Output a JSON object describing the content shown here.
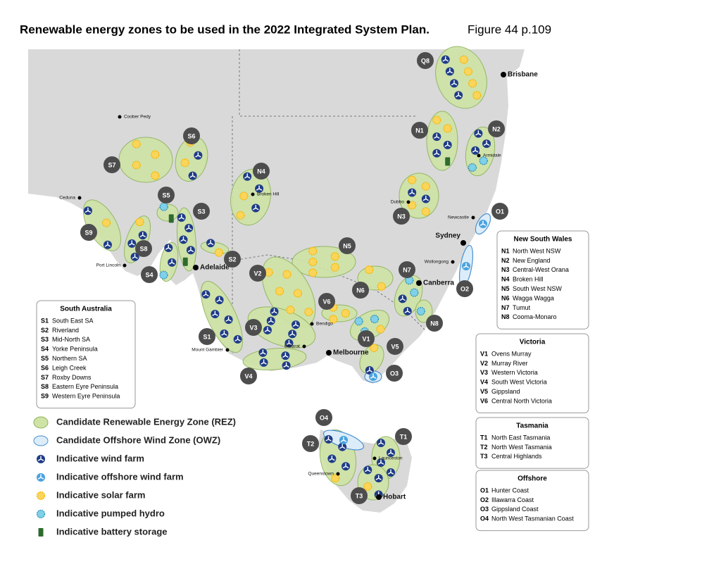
{
  "header": {
    "title": "Renewable energy zones to be used in the 2022 Integrated System Plan.",
    "figure": "Figure 44 p.109"
  },
  "map": {
    "cities": [
      "Coober Pedy",
      "Ceduna",
      "Port Lincoln",
      "Adelaide",
      "Mount Gambier",
      "Broken Hill",
      "Bendigo",
      "Ballarat",
      "Melbourne",
      "Canberra",
      "Wollongong",
      "Sydney",
      "Newcastle",
      "Dubbo",
      "Armidale",
      "Brisbane",
      "Launceston",
      "Queenstown",
      "Hobart"
    ],
    "badges": [
      "Q8",
      "N1",
      "N2",
      "N3",
      "N4",
      "N5",
      "N6",
      "N7",
      "N8",
      "O1",
      "O2",
      "O3",
      "O4",
      "S1",
      "S2",
      "S3",
      "S4",
      "S5",
      "S6",
      "S7",
      "S8",
      "S9",
      "V1",
      "V2",
      "V3",
      "V4",
      "V5",
      "V6",
      "T1",
      "T2",
      "T3"
    ]
  },
  "symbol_legend": [
    "Candidate Renewable Energy Zone (REZ)",
    "Candidate Offshore Wind Zone (OWZ)",
    "Indicative wind farm",
    "Indicative offshore wind farm",
    "Indicative solar farm",
    "Indicative pumped hydro",
    "Indicative battery storage"
  ],
  "region_legends": [
    {
      "title": "South Australia",
      "entries": [
        {
          "code": "S1",
          "name": "South East SA"
        },
        {
          "code": "S2",
          "name": "Riverland"
        },
        {
          "code": "S3",
          "name": "Mid-North SA"
        },
        {
          "code": "S4",
          "name": "Yorke Peninsula"
        },
        {
          "code": "S5",
          "name": "Northern SA"
        },
        {
          "code": "S6",
          "name": "Leigh Creek"
        },
        {
          "code": "S7",
          "name": "Roxby Downs"
        },
        {
          "code": "S8",
          "name": "Eastern Eyre Peninsula"
        },
        {
          "code": "S9",
          "name": "Western Eyre Peninsula"
        }
      ]
    },
    {
      "title": "New South Wales",
      "entries": [
        {
          "code": "N1",
          "name": "North West NSW"
        },
        {
          "code": "N2",
          "name": "New England"
        },
        {
          "code": "N3",
          "name": "Central-West Orana"
        },
        {
          "code": "N4",
          "name": "Broken Hill"
        },
        {
          "code": "N5",
          "name": "South West NSW"
        },
        {
          "code": "N6",
          "name": "Wagga Wagga"
        },
        {
          "code": "N7",
          "name": "Tumut"
        },
        {
          "code": "N8",
          "name": "Cooma-Monaro"
        }
      ]
    },
    {
      "title": "Victoria",
      "entries": [
        {
          "code": "V1",
          "name": "Ovens Murray"
        },
        {
          "code": "V2",
          "name": "Murray River"
        },
        {
          "code": "V3",
          "name": "Western Victoria"
        },
        {
          "code": "V4",
          "name": "South West Victoria"
        },
        {
          "code": "V5",
          "name": "Gippsland"
        },
        {
          "code": "V6",
          "name": "Central North Victoria"
        }
      ]
    },
    {
      "title": "Tasmania",
      "entries": [
        {
          "code": "T1",
          "name": "North East Tasmania"
        },
        {
          "code": "T2",
          "name": "North West Tasmania"
        },
        {
          "code": "T3",
          "name": "Central Highlands"
        }
      ]
    },
    {
      "title": "Offshore",
      "entries": [
        {
          "code": "O1",
          "name": "Hunter Coast"
        },
        {
          "code": "O2",
          "name": "Illawarra Coast"
        },
        {
          "code": "O3",
          "name": "Gippsland Coast"
        },
        {
          "code": "O4",
          "name": "North West Tasmanian Coast"
        }
      ]
    }
  ]
}
